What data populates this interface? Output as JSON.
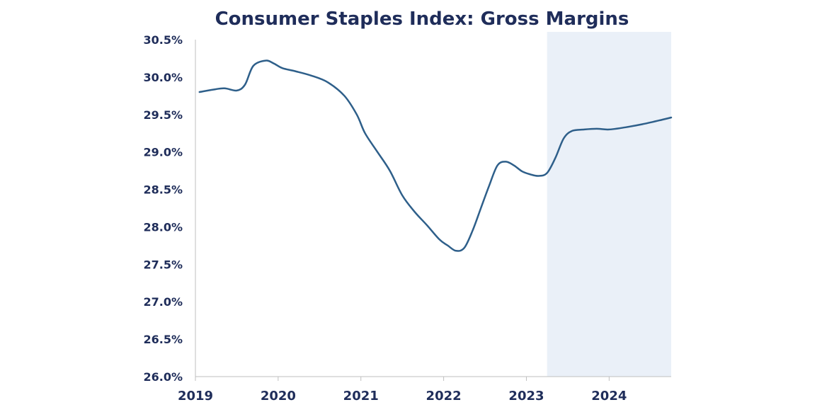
{
  "chart_data": {
    "type": "line",
    "title": "Consumer Staples Index: Gross Margins",
    "xlabel": "",
    "ylabel": "",
    "x_ticks": [
      "2019",
      "2020",
      "2021",
      "2022",
      "2023",
      "2024"
    ],
    "y_ticks": [
      "26.0%",
      "26.5%",
      "27.0%",
      "27.5%",
      "28.0%",
      "28.5%",
      "29.0%",
      "29.5%",
      "30.0%",
      "30.5%"
    ],
    "xlim": [
      2019.0,
      2024.75
    ],
    "ylim": [
      26.0,
      30.5
    ],
    "grid": false,
    "shaded_region": {
      "x_start": 2023.25,
      "x_end": 2024.75,
      "color": "#eaf0f8"
    },
    "series": [
      {
        "color": "#2e5f8a",
        "x": [
          2019.05,
          2019.2,
          2019.35,
          2019.5,
          2019.6,
          2019.7,
          2019.85,
          2019.95,
          2020.05,
          2020.2,
          2020.4,
          2020.6,
          2020.8,
          2020.95,
          2021.05,
          2021.2,
          2021.35,
          2021.5,
          2021.65,
          2021.8,
          2021.95,
          2022.05,
          2022.15,
          2022.25,
          2022.35,
          2022.45,
          2022.55,
          2022.65,
          2022.75,
          2022.85,
          2022.95,
          2023.05,
          2023.15,
          2023.25,
          2023.35,
          2023.45,
          2023.55,
          2023.7,
          2023.85,
          2024.0,
          2024.2,
          2024.4,
          2024.6,
          2024.75
        ],
        "y": [
          29.8,
          29.83,
          29.85,
          29.82,
          29.9,
          30.15,
          30.22,
          30.18,
          30.12,
          30.08,
          30.02,
          29.93,
          29.75,
          29.5,
          29.25,
          29.0,
          28.75,
          28.42,
          28.2,
          28.02,
          27.83,
          27.75,
          27.68,
          27.72,
          27.95,
          28.25,
          28.55,
          28.82,
          28.87,
          28.82,
          28.74,
          28.7,
          28.68,
          28.72,
          28.92,
          29.18,
          29.28,
          29.3,
          29.31,
          29.3,
          29.33,
          29.37,
          29.42,
          29.46
        ]
      }
    ]
  }
}
